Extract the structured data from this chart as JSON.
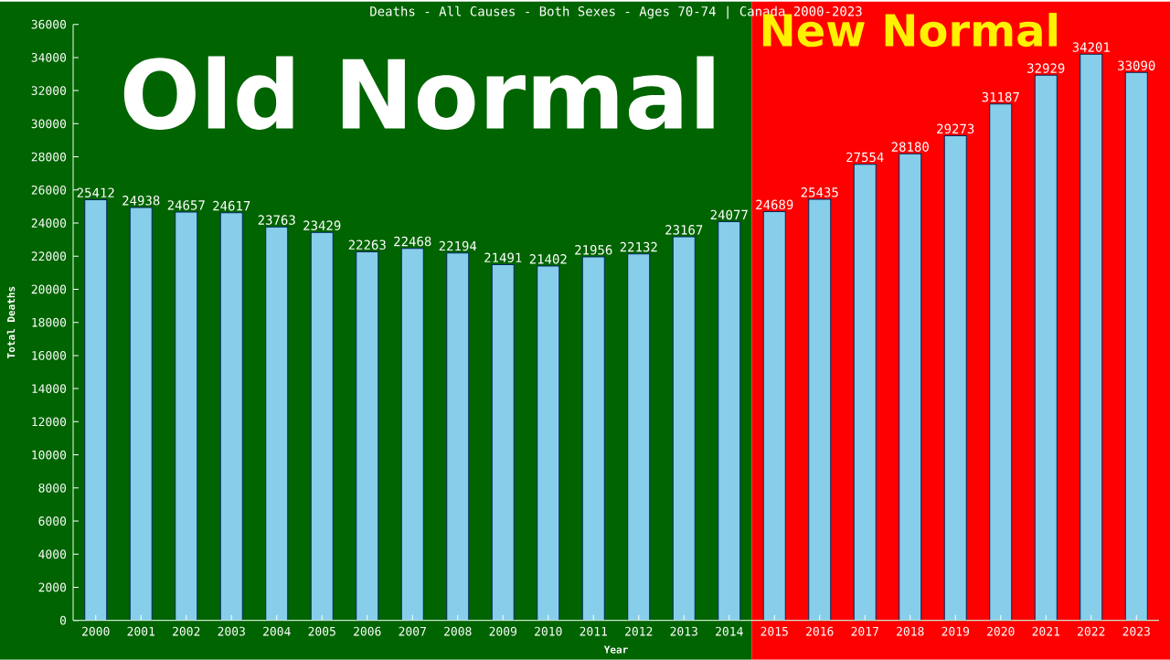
{
  "chart_data": {
    "type": "bar",
    "title": "Deaths - All Causes - Both Sexes - Ages 70-74 | Canada 2000-2023",
    "xlabel": "Year",
    "ylabel": "Total Deaths",
    "x": [
      2000,
      2001,
      2002,
      2003,
      2004,
      2005,
      2006,
      2007,
      2008,
      2009,
      2010,
      2011,
      2012,
      2013,
      2014,
      2015,
      2016,
      2017,
      2018,
      2019,
      2020,
      2021,
      2022,
      2023
    ],
    "values": [
      25412,
      24938,
      24657,
      24617,
      23763,
      23429,
      22263,
      22468,
      22194,
      21491,
      21402,
      21956,
      22132,
      23167,
      24077,
      24689,
      25435,
      27554,
      28180,
      29273,
      31187,
      32929,
      34201,
      33090
    ],
    "color": "#87ceeb",
    "data_labels": true,
    "xlim": [
      1999.5,
      2023.5
    ],
    "xticks": [
      2000,
      2001,
      2002,
      2003,
      2004,
      2005,
      2006,
      2007,
      2008,
      2009,
      2010,
      2011,
      2012,
      2013,
      2014,
      2015,
      2016,
      2017,
      2018,
      2019,
      2020,
      2021,
      2022,
      2023
    ],
    "ylim": [
      0,
      36000
    ],
    "yticks": [
      0,
      2000,
      4000,
      6000,
      8000,
      10000,
      12000,
      14000,
      16000,
      18000,
      20000,
      22000,
      24000,
      26000,
      28000,
      30000,
      32000,
      34000,
      36000
    ],
    "bands": [
      {
        "axis": "x",
        "from": 1999.5,
        "to": 2014.5,
        "label": "Old Normal",
        "color": "#006400"
      },
      {
        "axis": "x",
        "from": 2014.5,
        "to": 2023.5,
        "label": "New Normal",
        "color": "#ff0000"
      }
    ],
    "grid": false
  }
}
